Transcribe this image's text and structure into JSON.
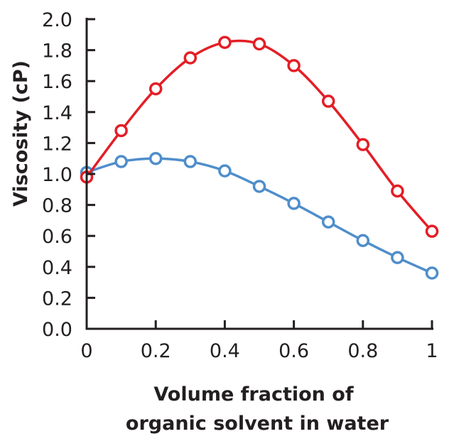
{
  "chart_data": {
    "type": "line",
    "title": "",
    "xlabel_lines": [
      "Volume fraction of",
      "organic solvent in water"
    ],
    "ylabel": "Viscosity (cP)",
    "xlim": [
      0,
      1
    ],
    "ylim": [
      0,
      2.0
    ],
    "x_ticks": [
      0,
      0.2,
      0.4,
      0.6,
      0.8,
      1
    ],
    "x_tick_labels": [
      "0",
      "0.2",
      "0.4",
      "0.6",
      "0.8",
      "1"
    ],
    "y_ticks": [
      0,
      0.2,
      0.4,
      0.6,
      0.8,
      1.0,
      1.2,
      1.4,
      1.6,
      1.8,
      2.0
    ],
    "y_tick_labels": [
      "0.0",
      "0.2",
      "0.4",
      "0.6",
      "0.8",
      "1.0",
      "1.2",
      "1.4",
      "1.6",
      "1.8",
      "2.0"
    ],
    "grid": false,
    "x": [
      0,
      0.1,
      0.2,
      0.3,
      0.4,
      0.5,
      0.6,
      0.7,
      0.8,
      0.9,
      1.0
    ],
    "series": [
      {
        "name": "red-series",
        "color": "#e31e26",
        "values": [
          0.98,
          1.28,
          1.55,
          1.75,
          1.85,
          1.84,
          1.7,
          1.47,
          1.19,
          0.89,
          0.63
        ]
      },
      {
        "name": "blue-series",
        "color": "#4f8ecb",
        "values": [
          1.01,
          1.08,
          1.1,
          1.08,
          1.02,
          0.92,
          0.81,
          0.69,
          0.57,
          0.46,
          0.36
        ]
      }
    ]
  }
}
